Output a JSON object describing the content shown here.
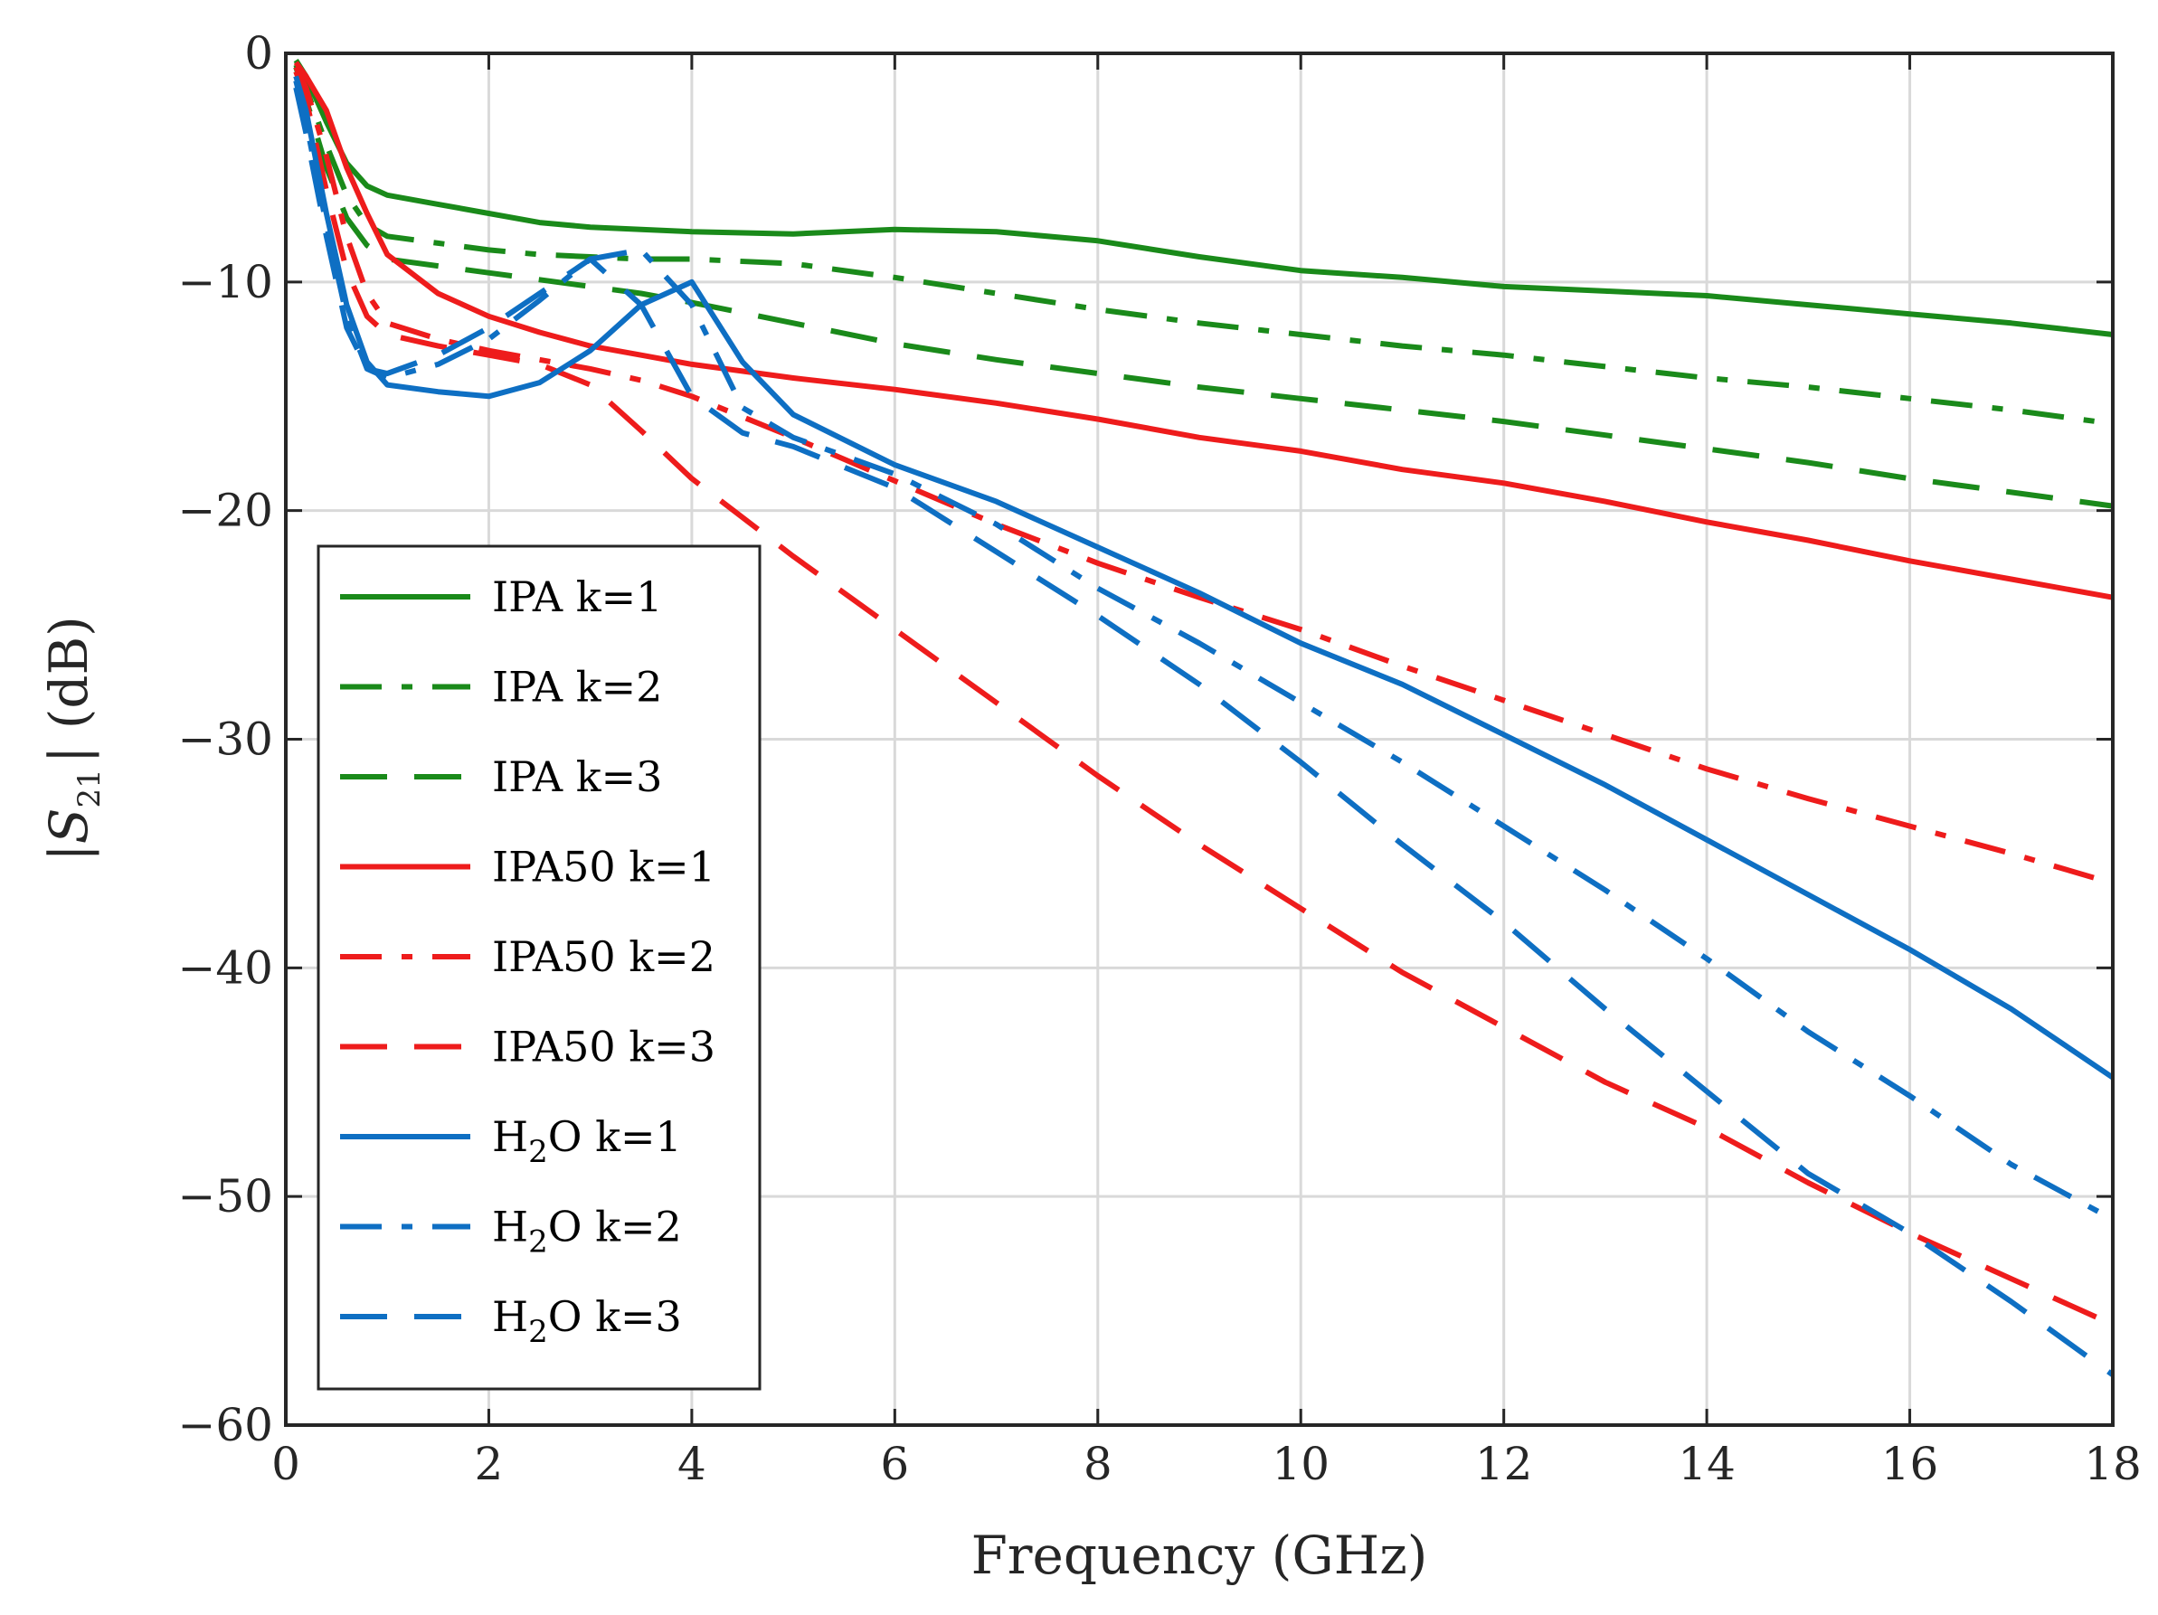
{
  "chart_data": {
    "type": "line",
    "xlabel": "Frequency (GHz)",
    "ylabel": {
      "prefix": "|",
      "symbol": "S",
      "subscript": "21",
      "suffix": "| (dB)"
    },
    "xlim": [
      0,
      18
    ],
    "ylim": [
      -60,
      0
    ],
    "x_ticks": [
      0,
      2,
      4,
      6,
      8,
      10,
      12,
      14,
      16,
      18
    ],
    "y_ticks": [
      0,
      -10,
      -20,
      -30,
      -40,
      -50,
      -60
    ],
    "x_tick_labels": [
      "0",
      "2",
      "4",
      "6",
      "8",
      "10",
      "12",
      "14",
      "16",
      "18"
    ],
    "y_tick_labels": [
      "0",
      "−10",
      "−20",
      "−30",
      "−40",
      "−50",
      "−60"
    ],
    "grid": true,
    "legend_position": "bottom-left",
    "series": [
      {
        "name": "IPA k=1",
        "color": "#1a8a1a",
        "style": "solid",
        "x": [
          0.1,
          0.2,
          0.4,
          0.6,
          0.8,
          1.0,
          1.5,
          2.0,
          2.5,
          3.0,
          3.5,
          4.0,
          5.0,
          6.0,
          7.0,
          8.0,
          9.0,
          10.0,
          11.0,
          12.0,
          13.0,
          14.0,
          15.0,
          16.0,
          17.0,
          18.0
        ],
        "values": [
          -0.3,
          -1.0,
          -3.0,
          -4.8,
          -5.8,
          -6.2,
          -6.6,
          -7.0,
          -7.4,
          -7.6,
          -7.7,
          -7.8,
          -7.9,
          -7.7,
          -7.8,
          -8.2,
          -8.9,
          -9.5,
          -9.8,
          -10.2,
          -10.4,
          -10.6,
          -11.0,
          -11.4,
          -11.8,
          -12.3
        ]
      },
      {
        "name": "IPA k=2",
        "color": "#1a8a1a",
        "style": "dashdot",
        "x": [
          0.1,
          0.2,
          0.4,
          0.6,
          0.8,
          1.0,
          1.5,
          2.0,
          2.5,
          3.0,
          3.5,
          4.0,
          5.0,
          6.0,
          7.0,
          8.0,
          9.0,
          10.0,
          11.0,
          12.0,
          13.0,
          14.0,
          15.0,
          16.0,
          17.0,
          18.0
        ],
        "values": [
          -0.5,
          -1.5,
          -4.0,
          -6.2,
          -7.5,
          -8.0,
          -8.3,
          -8.6,
          -8.8,
          -8.9,
          -9.0,
          -9.0,
          -9.2,
          -9.8,
          -10.5,
          -11.2,
          -11.8,
          -12.3,
          -12.8,
          -13.2,
          -13.7,
          -14.2,
          -14.6,
          -15.1,
          -15.6,
          -16.2
        ]
      },
      {
        "name": "IPA k=3",
        "color": "#1a8a1a",
        "style": "dashed",
        "x": [
          0.1,
          0.2,
          0.4,
          0.6,
          0.8,
          1.0,
          1.5,
          2.0,
          2.5,
          3.0,
          3.5,
          4.0,
          5.0,
          6.0,
          7.0,
          8.0,
          9.0,
          10.0,
          11.0,
          12.0,
          13.0,
          14.0,
          15.0,
          16.0,
          17.0,
          18.0
        ],
        "values": [
          -0.6,
          -2.0,
          -5.0,
          -7.2,
          -8.4,
          -9.0,
          -9.3,
          -9.6,
          -9.9,
          -10.2,
          -10.5,
          -10.9,
          -11.8,
          -12.7,
          -13.4,
          -14.0,
          -14.6,
          -15.1,
          -15.6,
          -16.1,
          -16.7,
          -17.3,
          -17.9,
          -18.6,
          -19.2,
          -19.8
        ]
      },
      {
        "name": "IPA50 k=1",
        "color": "#ee1c1c",
        "style": "solid",
        "x": [
          0.1,
          0.2,
          0.4,
          0.6,
          0.8,
          1.0,
          1.5,
          2.0,
          2.5,
          3.0,
          3.5,
          4.0,
          5.0,
          6.0,
          7.0,
          8.0,
          9.0,
          10.0,
          11.0,
          12.0,
          13.0,
          14.0,
          15.0,
          16.0,
          17.0,
          18.0
        ],
        "values": [
          -0.4,
          -1.0,
          -2.5,
          -5.0,
          -7.0,
          -8.8,
          -10.5,
          -11.5,
          -12.2,
          -12.8,
          -13.2,
          -13.6,
          -14.2,
          -14.7,
          -15.3,
          -16.0,
          -16.8,
          -17.4,
          -18.2,
          -18.8,
          -19.6,
          -20.5,
          -21.3,
          -22.2,
          -23.0,
          -23.8
        ]
      },
      {
        "name": "IPA50 k=2",
        "color": "#ee1c1c",
        "style": "dashdot",
        "x": [
          0.1,
          0.2,
          0.4,
          0.6,
          0.8,
          1.0,
          1.5,
          2.0,
          2.5,
          3.0,
          3.5,
          4.0,
          5.0,
          6.0,
          7.0,
          8.0,
          9.0,
          10.0,
          11.0,
          12.0,
          13.0,
          14.0,
          15.0,
          16.0,
          17.0,
          18.0
        ],
        "values": [
          -0.6,
          -1.5,
          -4.5,
          -8.0,
          -10.5,
          -11.8,
          -12.5,
          -13.0,
          -13.4,
          -13.8,
          -14.3,
          -15.0,
          -16.8,
          -18.7,
          -20.6,
          -22.3,
          -23.8,
          -25.2,
          -26.8,
          -28.3,
          -29.8,
          -31.3,
          -32.6,
          -33.8,
          -35.0,
          -36.3
        ]
      },
      {
        "name": "IPA50 k=3",
        "color": "#ee1c1c",
        "style": "dashed",
        "x": [
          0.1,
          0.2,
          0.4,
          0.6,
          0.8,
          1.0,
          1.5,
          2.0,
          2.5,
          3.0,
          3.5,
          4.0,
          5.0,
          6.0,
          7.0,
          8.0,
          9.0,
          10.0,
          11.0,
          12.0,
          13.0,
          14.0,
          15.0,
          16.0,
          17.0,
          18.0
        ],
        "values": [
          -0.8,
          -2.0,
          -6.0,
          -9.5,
          -11.5,
          -12.3,
          -12.8,
          -13.2,
          -13.6,
          -14.5,
          -16.5,
          -18.6,
          -22.0,
          -25.2,
          -28.4,
          -31.6,
          -34.6,
          -37.4,
          -40.2,
          -42.6,
          -45.0,
          -47.0,
          -49.4,
          -51.6,
          -53.6,
          -55.6
        ]
      },
      {
        "name": "H2O k=1",
        "color": "#0e6fc3",
        "style": "solid",
        "x": [
          0.1,
          0.2,
          0.4,
          0.6,
          0.8,
          1.0,
          1.5,
          2.0,
          2.5,
          3.0,
          3.5,
          4.0,
          4.5,
          5.0,
          6.0,
          7.0,
          8.0,
          9.0,
          10.0,
          11.0,
          12.0,
          13.0,
          14.0,
          15.0,
          16.0,
          17.0,
          18.0
        ],
        "values": [
          -1.0,
          -2.5,
          -7.0,
          -11.0,
          -13.5,
          -14.5,
          -14.8,
          -15.0,
          -14.4,
          -13.0,
          -11.0,
          -10.0,
          -13.5,
          -15.8,
          -18.0,
          -19.6,
          -21.6,
          -23.6,
          -25.8,
          -27.6,
          -29.8,
          -32.0,
          -34.4,
          -36.8,
          -39.2,
          -41.8,
          -44.8
        ]
      },
      {
        "name": "H2O k=2",
        "color": "#0e6fc3",
        "style": "dashdot",
        "x": [
          0.1,
          0.2,
          0.4,
          0.6,
          0.8,
          1.0,
          1.5,
          2.0,
          2.5,
          3.0,
          3.5,
          4.0,
          4.5,
          5.0,
          6.0,
          7.0,
          8.0,
          9.0,
          10.0,
          11.0,
          12.0,
          13.0,
          14.0,
          15.0,
          16.0,
          17.0,
          18.0
        ],
        "values": [
          -1.2,
          -3.0,
          -7.5,
          -11.5,
          -13.8,
          -14.2,
          -13.6,
          -12.5,
          -10.8,
          -9.0,
          -8.6,
          -11.0,
          -15.5,
          -16.8,
          -18.4,
          -20.6,
          -23.4,
          -25.8,
          -28.4,
          -31.0,
          -33.8,
          -36.6,
          -39.6,
          -42.8,
          -45.6,
          -48.6,
          -51.0
        ]
      },
      {
        "name": "H2O k=3",
        "color": "#0e6fc3",
        "style": "dashed",
        "x": [
          0.1,
          0.2,
          0.4,
          0.6,
          0.8,
          1.0,
          1.5,
          2.0,
          2.5,
          3.0,
          3.5,
          4.0,
          4.5,
          5.0,
          6.0,
          7.0,
          8.0,
          9.0,
          10.0,
          11.0,
          12.0,
          13.0,
          14.0,
          15.0,
          16.0,
          17.0,
          18.0
        ],
        "values": [
          -1.5,
          -3.5,
          -8.0,
          -12.0,
          -13.8,
          -14.0,
          -13.2,
          -12.0,
          -10.5,
          -9.0,
          -11.0,
          -15.0,
          -16.6,
          -17.2,
          -19.0,
          -21.8,
          -24.6,
          -27.6,
          -31.0,
          -34.6,
          -38.0,
          -41.8,
          -45.4,
          -49.0,
          -51.6,
          -54.6,
          -57.8
        ]
      }
    ],
    "legend": [
      {
        "label": "IPA k=1",
        "base": "IPA k=1",
        "sub": "",
        "tail": ""
      },
      {
        "label": "IPA k=2",
        "base": "IPA k=2",
        "sub": "",
        "tail": ""
      },
      {
        "label": "IPA k=3",
        "base": "IPA k=3",
        "sub": "",
        "tail": ""
      },
      {
        "label": "IPA50 k=1",
        "base": "IPA50 k=1",
        "sub": "",
        "tail": ""
      },
      {
        "label": "IPA50 k=2",
        "base": "IPA50 k=2",
        "sub": "",
        "tail": ""
      },
      {
        "label": "IPA50 k=3",
        "base": "IPA50 k=3",
        "sub": "",
        "tail": ""
      },
      {
        "label": "H2O k=1",
        "base": "H",
        "sub": "2",
        "tail": "O k=1"
      },
      {
        "label": "H2O k=2",
        "base": "H",
        "sub": "2",
        "tail": "O k=2"
      },
      {
        "label": "H2O k=3",
        "base": "H",
        "sub": "2",
        "tail": "O k=3"
      }
    ]
  }
}
